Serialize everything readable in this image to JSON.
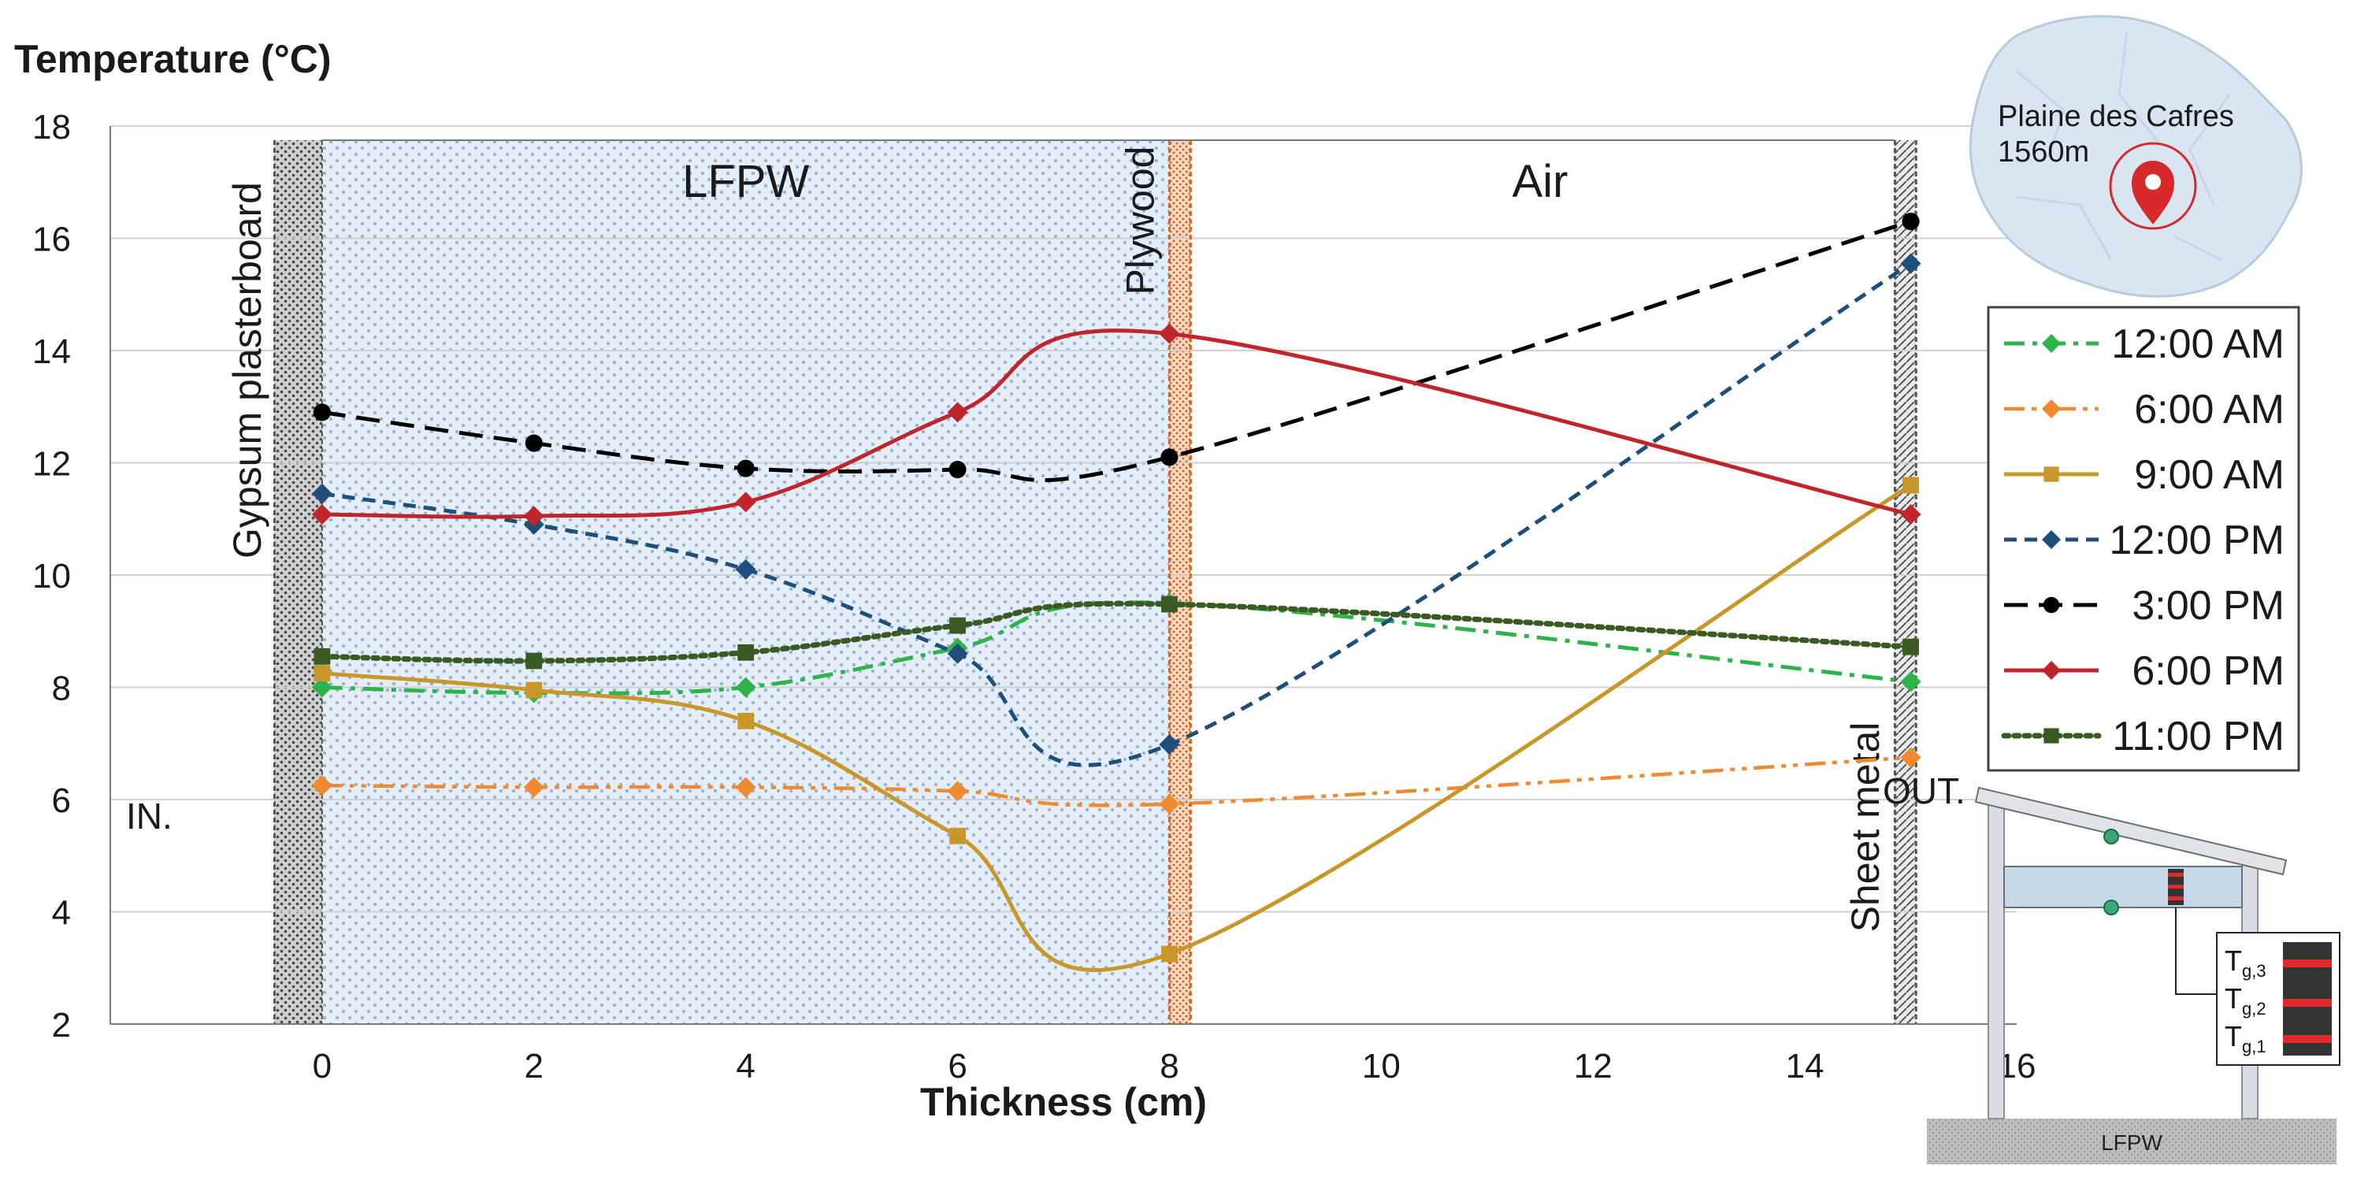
{
  "chart_data": {
    "type": "line",
    "title": "",
    "xlabel": "Thickness (cm)",
    "ylabel": "Temperature (°C)",
    "xlim": [
      -2,
      16
    ],
    "ylim": [
      2,
      18
    ],
    "xticks": [
      0,
      2,
      4,
      6,
      8,
      10,
      12,
      14,
      16
    ],
    "yticks": [
      2,
      4,
      6,
      8,
      10,
      12,
      14,
      16,
      18
    ],
    "grid": "horizontal",
    "legend_position": "right",
    "x": [
      0,
      2,
      4,
      6,
      8,
      15
    ],
    "series": [
      {
        "name": "12:00 AM",
        "color": "#2db34a",
        "marker": "diamond",
        "dash": "dashdot",
        "values": [
          8.0,
          7.9,
          8.0,
          8.7,
          9.5,
          8.1
        ]
      },
      {
        "name": "6:00 AM",
        "color": "#f08a30",
        "marker": "diamond",
        "dash": "dashdotdot",
        "values": [
          6.25,
          6.22,
          6.22,
          6.15,
          5.92,
          6.75
        ]
      },
      {
        "name": "9:00 AM",
        "color": "#c9962a",
        "marker": "square",
        "dash": "solid",
        "values": [
          8.25,
          7.95,
          7.4,
          5.35,
          3.25,
          11.6
        ]
      },
      {
        "name": "12:00 PM",
        "color": "#1f4e79",
        "marker": "diamond",
        "dash": "dashed",
        "values": [
          11.45,
          10.9,
          10.1,
          8.6,
          6.98,
          15.55
        ]
      },
      {
        "name": "3:00 PM",
        "color": "#000000",
        "marker": "circle",
        "dash": "longdash",
        "values": [
          12.9,
          12.35,
          11.9,
          11.88,
          12.1,
          16.3
        ]
      },
      {
        "name": "6:00 PM",
        "color": "#c0252b",
        "marker": "diamond",
        "dash": "solid",
        "values": [
          11.08,
          11.05,
          11.3,
          12.9,
          14.3,
          11.08
        ]
      },
      {
        "name": "11:00 PM",
        "color": "#3b5a23",
        "marker": "square",
        "dash": "dotted",
        "values": [
          8.55,
          8.47,
          8.62,
          9.1,
          9.48,
          8.72
        ]
      }
    ],
    "layers": [
      {
        "name": "Gypsum plasterboard",
        "x_start": -0.45,
        "x_end": 0,
        "fill": "#d0d0d0",
        "label": "Gypsum plasterboard"
      },
      {
        "name": "LFPW",
        "x_start": 0,
        "x_end": 8,
        "fill": "#e4eef8",
        "label": "LFPW"
      },
      {
        "name": "Plywood",
        "x_start": 8,
        "x_end": 8.2,
        "fill": "#f6d6c4",
        "label": "Plywood"
      },
      {
        "name": "Air",
        "x_start": 8.2,
        "x_end": 14.85,
        "fill": "#ffffff",
        "label": "Air"
      },
      {
        "name": "Sheet metal",
        "x_start": 14.85,
        "x_end": 15.05,
        "fill": "#e0e0e0",
        "label": "Sheet metal"
      }
    ],
    "annotations": {
      "inside": "IN.",
      "outside": "OUT."
    }
  },
  "inset_map": {
    "place": "Plaine des Cafres",
    "altitude": "1560m",
    "marker_color": "#d62a2a"
  },
  "inset_diagram": {
    "floor_label": "LFPW",
    "sensors": [
      {
        "name": "T",
        "sub": "g,3"
      },
      {
        "name": "T",
        "sub": "g,2"
      },
      {
        "name": "T",
        "sub": "g,1"
      }
    ]
  },
  "colors": {
    "grid": "#d0d0d0",
    "axis": "#7a7a7a",
    "text": "#1a1a1a"
  }
}
